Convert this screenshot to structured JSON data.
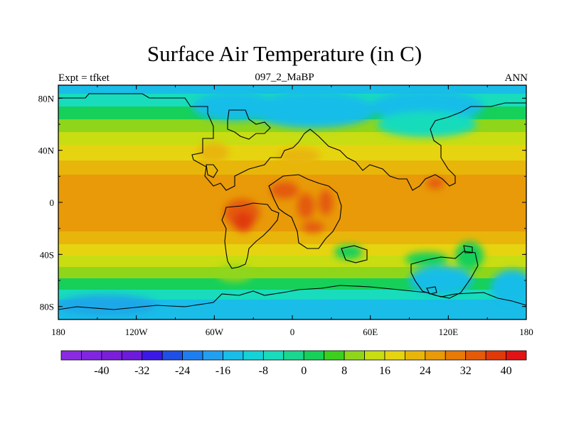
{
  "title": "Surface Air Temperature (in C)",
  "left_string": "Expt = tfket",
  "center_string": "097_2_MaBP",
  "right_string": "ANN",
  "x_ticks": [
    "180",
    "120W",
    "60W",
    "0",
    "60E",
    "120E",
    "180"
  ],
  "y_ticks": [
    "80N",
    "40N",
    "0",
    "40S",
    "80S"
  ],
  "colorbar": {
    "labels": [
      "-40",
      "-32",
      "-24",
      "-16",
      "-8",
      "0",
      "8",
      "16",
      "24",
      "32",
      "40"
    ],
    "colors": [
      "#8a2be2",
      "#8126e0",
      "#7a1ed8",
      "#6d1adb",
      "#3c18e6",
      "#1f4fe4",
      "#1e7ef0",
      "#22a0f0",
      "#19bde8",
      "#15d2d6",
      "#18dcbc",
      "#1ad790",
      "#16d05a",
      "#3ccf1e",
      "#8fd61a",
      "#c8dd12",
      "#e6d410",
      "#e8b60a",
      "#e89a08",
      "#e87a06",
      "#e45a08",
      "#e03a0a",
      "#e01414"
    ]
  }
}
